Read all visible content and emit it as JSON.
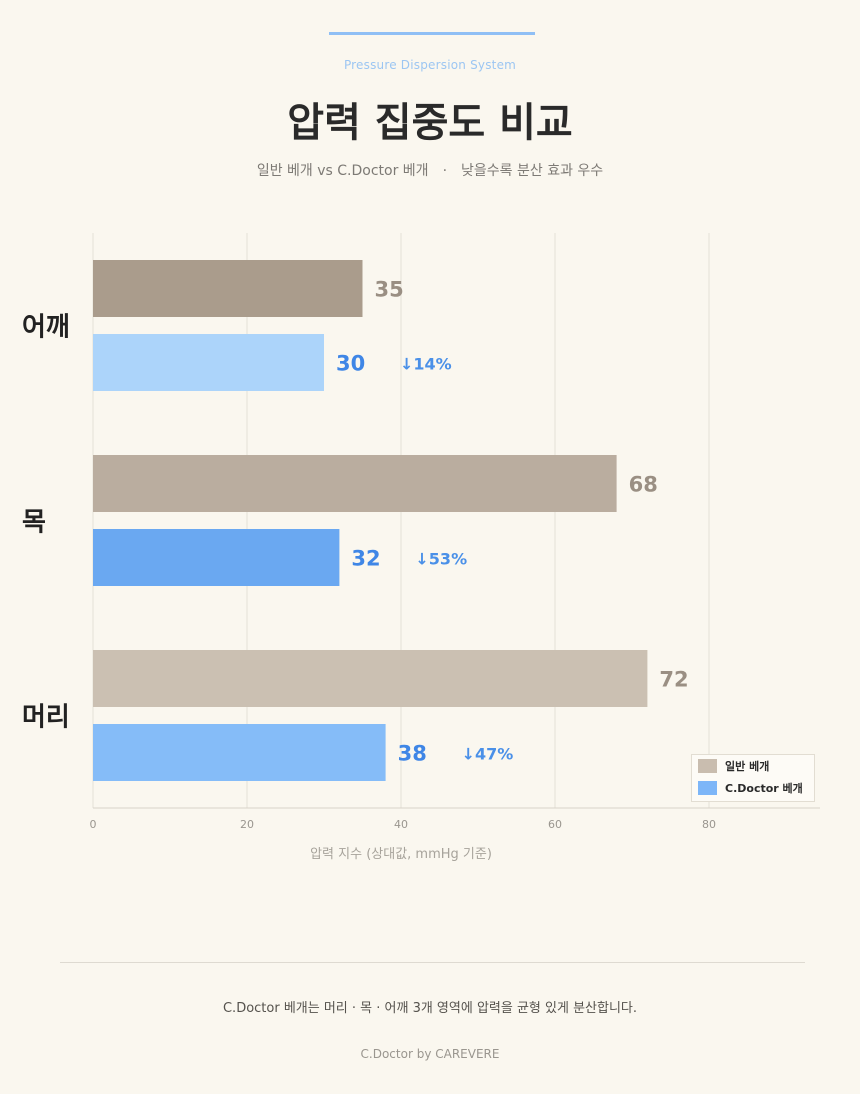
{
  "header": {
    "eyebrow": "Pressure Dispersion System",
    "title": "압력 집중도 비교",
    "subtitle_left": "일반 베개 vs C.Doctor 베개",
    "subtitle_sep": "·",
    "subtitle_right": "낮을수록 분산 효과 우수"
  },
  "chart_data": {
    "type": "bar",
    "orientation": "horizontal",
    "categories": [
      "어깨",
      "목",
      "머리"
    ],
    "series": [
      {
        "name": "일반 베개",
        "values": [
          35,
          68,
          72
        ],
        "colors": [
          "#aa9c8c",
          "#baad9f",
          "#cbc0b2"
        ]
      },
      {
        "name": "C.Doctor 베개",
        "values": [
          30,
          32,
          38
        ],
        "colors": [
          "#acd4fa",
          "#6aa8f1",
          "#85bcf8"
        ]
      }
    ],
    "reduction_labels": [
      "↓14%",
      "↓53%",
      "↓47%"
    ],
    "xlabel": "압력 지수 (상대값, mmHg 기준)",
    "xticks": [
      0,
      20,
      40,
      60,
      80
    ],
    "xlim": [
      0,
      95
    ],
    "grid": true,
    "legend_position": "bottom-right"
  },
  "legend": {
    "items": [
      {
        "label": "일반 베개",
        "color": "#c9bdaf"
      },
      {
        "label": "C.Doctor 베개",
        "color": "#7db6f8"
      }
    ]
  },
  "footer": {
    "note": "C.Doctor 베개는 머리 · 목 · 어깨 3개 영역에 압력을 균형 있게 분산합니다.",
    "brand": "C.Doctor  by  CAREVERE"
  },
  "colors": {
    "base_value_text": "#9a8f83",
    "doctor_value_text": "#3f86e6",
    "reduction_text": "#4a90e8"
  }
}
